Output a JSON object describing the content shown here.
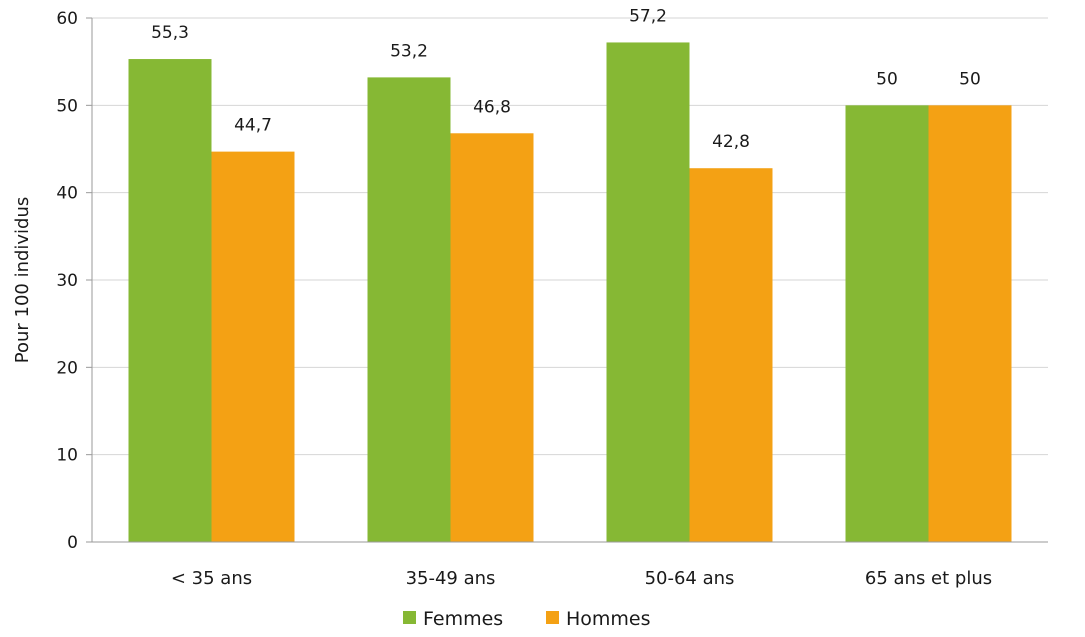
{
  "chart_data": {
    "type": "bar",
    "title": "",
    "xlabel": "",
    "ylabel": "Pour 100 individus",
    "ylim": [
      0,
      60
    ],
    "yticks": [
      0,
      10,
      20,
      30,
      40,
      50,
      60
    ],
    "grid": true,
    "legend_position": "bottom",
    "categories": [
      "< 35 ans",
      "35-49 ans",
      "50-64 ans",
      "65 ans et plus"
    ],
    "series": [
      {
        "name": "Femmes",
        "color": "#86b834",
        "values": [
          55.3,
          53.2,
          57.2,
          50
        ],
        "labels": [
          "55,3",
          "53,2",
          "57,2",
          "50"
        ]
      },
      {
        "name": "Hommes",
        "color": "#f4a114",
        "values": [
          44.7,
          46.8,
          42.8,
          50
        ],
        "labels": [
          "44,7",
          "46,8",
          "42,8",
          "50"
        ]
      }
    ]
  }
}
